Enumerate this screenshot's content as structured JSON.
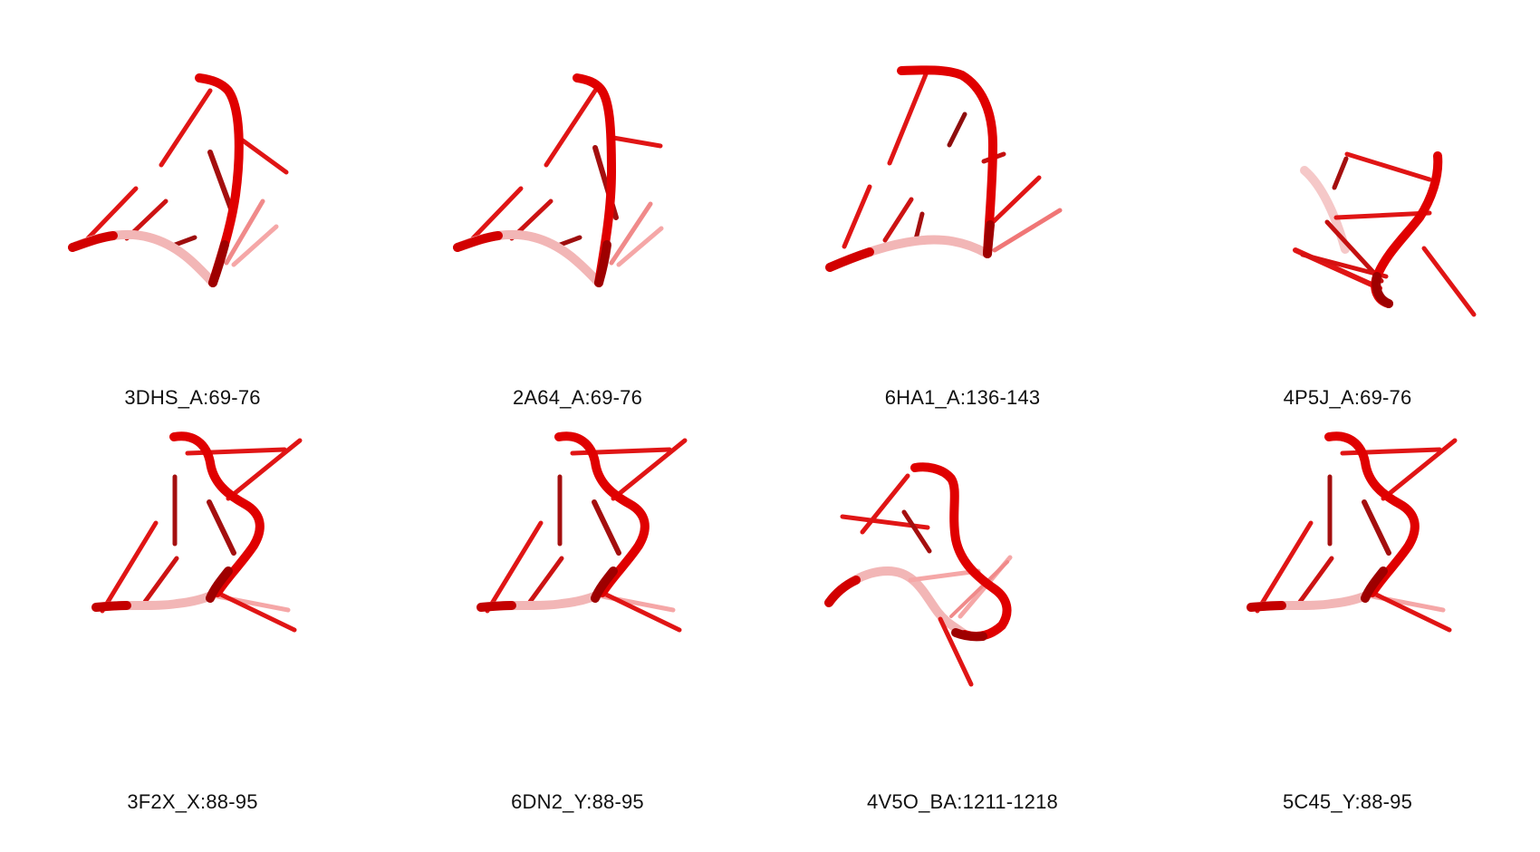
{
  "colors": {
    "backbone": "#e00000",
    "backbone_dark": "#9e0000",
    "backbone_light": "#f2b6b6",
    "base": "#e01515",
    "base_dark": "#a40f0f"
  },
  "structures": [
    {
      "label": "3DHS_A:69-76"
    },
    {
      "label": "2A64_A:69-76"
    },
    {
      "label": "6HA1_A:136-143"
    },
    {
      "label": "4P5J_A:69-76"
    },
    {
      "label": "3F2X_X:88-95"
    },
    {
      "label": "6DN2_Y:88-95"
    },
    {
      "label": "4V5O_BA:1211-1218"
    },
    {
      "label": "5C45_Y:88-95"
    }
  ]
}
